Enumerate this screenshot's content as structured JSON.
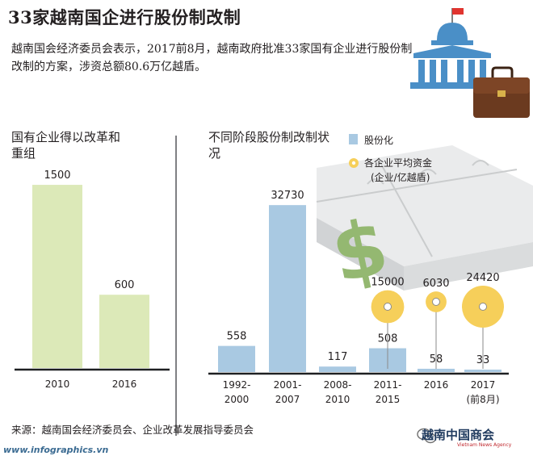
{
  "title": "33家越南国企进行股份制改制",
  "intro": "越南国会经济委员会表示，2017前8月，越南政府批准33家国有企业进行股份制改制的方案，涉资总额80.6万亿越盾。",
  "source": "来源：越南国会经济委员会、企业改革发展指导委员会",
  "website": "www.infographics.vn",
  "watermark": "越南中国商会",
  "watermark_sub": "Vietnam News Agency",
  "colors": {
    "green_bar": "#dce9b8",
    "blue_bar": "#a9c9e2",
    "gold_bubble": "#f6cf5a",
    "axis": "#1e2022",
    "divider": "#7f8083"
  },
  "icons": [
    "government-building-icon",
    "briefcase-icon",
    "puzzle-dollar-illustration",
    "wechat-icon"
  ],
  "chart_data": [
    {
      "type": "bar",
      "title": "国有企业得以改革和重组",
      "categories": [
        "2010",
        "2016"
      ],
      "values": [
        1500,
        600
      ],
      "ylim": [
        0,
        1600
      ]
    },
    {
      "type": "bar",
      "title": "不同阶段股份制改制状况",
      "categories": [
        "1992-2000",
        "2001-2007",
        "2008-2010",
        "2011-2015",
        "2016",
        "2017 (前8月)"
      ],
      "category_lines": [
        [
          "1992-",
          "2000"
        ],
        [
          "2001-",
          "2007"
        ],
        [
          "2008-",
          "2010"
        ],
        [
          "2011-",
          "2015"
        ],
        [
          "2016"
        ],
        [
          "2017",
          "(前8月)"
        ]
      ],
      "series": [
        {
          "name": "股份化",
          "values": [
            558,
            32730,
            117,
            508,
            58,
            33
          ]
        },
        {
          "name": "各企业平均资金(企业/亿越盾)",
          "values": [
            null,
            null,
            null,
            15000,
            6030,
            24420
          ]
        }
      ],
      "legend": [
        "股份化",
        "各企业平均资金",
        "(企业/亿越盾)"
      ],
      "legend_position": "top-right"
    }
  ]
}
